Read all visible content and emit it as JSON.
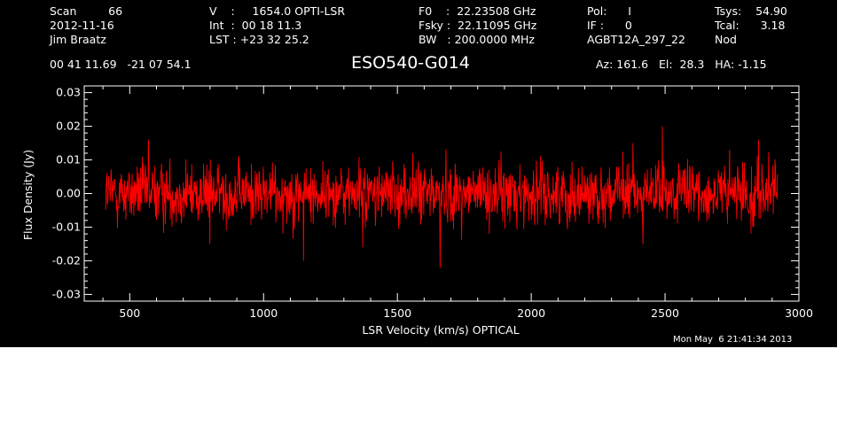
{
  "header": {
    "col1": [
      "Scan         66",
      "2012-11-16",
      "Jim Braatz"
    ],
    "col2": [
      "V    :     1654.0 OPTI-LSR",
      "Int  :  00 18 11.3",
      "LST : +23 32 25.2"
    ],
    "col3": [
      "F0    :  22.23508 GHz",
      "Fsky :  22.11095 GHz",
      "BW   : 200.0000 MHz"
    ],
    "col4": [
      "Pol:      I",
      "IF :      0",
      "AGBT12A_297_22"
    ],
    "col5": [
      "Tsys:    54.90",
      "Tcal:      3.18",
      "Nod"
    ],
    "coords": "00 41 11.69   -21 07 54.1",
    "source": "ESO540-G014",
    "azelha": "Az: 161.6   El:  28.3   HA: -1.15",
    "timestamp": "Mon May  6 21:41:34 2013"
  },
  "colors": {
    "background": "#000000",
    "foreground": "#ffffff",
    "series": "#ff0000"
  },
  "chart_data": {
    "type": "line",
    "title": "ESO540-G014",
    "xlabel": "LSR Velocity (km/s) OPTICAL",
    "ylabel": "Flux Density (Jy)",
    "xlim": [
      330,
      3000
    ],
    "ylim": [
      -0.032,
      0.032
    ],
    "xticks": [
      500,
      1000,
      1500,
      2000,
      2500,
      3000
    ],
    "yticks": [
      -0.03,
      -0.02,
      -0.01,
      0.0,
      0.01,
      0.02,
      0.03
    ],
    "ytick_labels": [
      "-0.03",
      "-0.02",
      "-0.01",
      "0.00",
      "0.01",
      "0.02",
      "0.03"
    ],
    "grid": false,
    "series": [
      {
        "x_range": [
          410,
          2920
        ],
        "points": 1600,
        "noise_rms": 0.0045,
        "features": [
          {
            "x": 1660,
            "y": -0.022
          },
          {
            "x": 1150,
            "y": -0.02
          },
          {
            "x": 2490,
            "y": 0.02
          },
          {
            "x": 570,
            "y": 0.016
          },
          {
            "x": 1370,
            "y": -0.016
          },
          {
            "x": 2850,
            "y": 0.016
          },
          {
            "x": 800,
            "y": -0.015
          },
          {
            "x": 2380,
            "y": 0.015
          }
        ]
      }
    ]
  }
}
